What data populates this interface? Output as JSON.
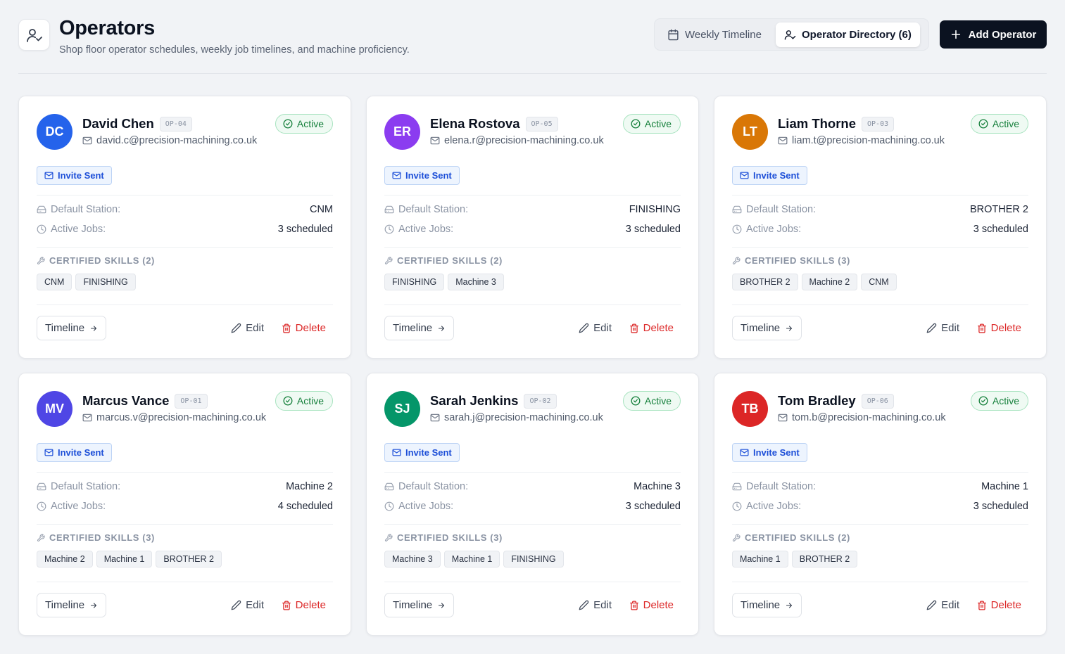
{
  "header": {
    "title": "Operators",
    "subtitle": "Shop floor operator schedules, weekly job timelines, and machine proficiency.",
    "title_icon": "user-check-icon"
  },
  "view_switch": {
    "weekly_label": "Weekly Timeline",
    "directory_label": "Operator Directory (6)",
    "active": "directory"
  },
  "add_button_label": "Add Operator",
  "labels": {
    "default_station": "Default Station:",
    "active_jobs": "Active Jobs:",
    "invite_sent": "Invite Sent",
    "timeline": "Timeline",
    "edit": "Edit",
    "delete": "Delete"
  },
  "colors": {
    "primary_dark": "#0b1220",
    "active_green": "#16803c",
    "invite_blue": "#1d4fd8",
    "delete_red": "#dc2626"
  },
  "operators": [
    {
      "initials": "DC",
      "avatar_color": "#2563eb",
      "name": "David Chen",
      "code": "OP-04",
      "email": "david.c@precision-machining.co.uk",
      "status": "Active",
      "station": "CNM",
      "jobs": "3 scheduled",
      "skills_title": "CERTIFIED SKILLS (2)",
      "skills": [
        "CNM",
        "FINISHING"
      ]
    },
    {
      "initials": "ER",
      "avatar_color": "#8b3cf0",
      "name": "Elena Rostova",
      "code": "OP-05",
      "email": "elena.r@precision-machining.co.uk",
      "status": "Active",
      "station": "FINISHING",
      "jobs": "3 scheduled",
      "skills_title": "CERTIFIED SKILLS (2)",
      "skills": [
        "FINISHING",
        "Machine 3"
      ]
    },
    {
      "initials": "LT",
      "avatar_color": "#d97706",
      "name": "Liam Thorne",
      "code": "OP-03",
      "email": "liam.t@precision-machining.co.uk",
      "status": "Active",
      "station": "BROTHER 2",
      "jobs": "3 scheduled",
      "skills_title": "CERTIFIED SKILLS (3)",
      "skills": [
        "BROTHER 2",
        "Machine 2",
        "CNM"
      ]
    },
    {
      "initials": "MV",
      "avatar_color": "#4f46e5",
      "name": "Marcus Vance",
      "code": "OP-01",
      "email": "marcus.v@precision-machining.co.uk",
      "status": "Active",
      "station": "Machine 2",
      "jobs": "4 scheduled",
      "skills_title": "CERTIFIED SKILLS (3)",
      "skills": [
        "Machine 2",
        "Machine 1",
        "BROTHER 2"
      ]
    },
    {
      "initials": "SJ",
      "avatar_color": "#059669",
      "name": "Sarah Jenkins",
      "code": "OP-02",
      "email": "sarah.j@precision-machining.co.uk",
      "status": "Active",
      "station": "Machine 3",
      "jobs": "3 scheduled",
      "skills_title": "CERTIFIED SKILLS (3)",
      "skills": [
        "Machine 3",
        "Machine 1",
        "FINISHING"
      ]
    },
    {
      "initials": "TB",
      "avatar_color": "#dc2626",
      "name": "Tom Bradley",
      "code": "OP-06",
      "email": "tom.b@precision-machining.co.uk",
      "status": "Active",
      "station": "Machine 1",
      "jobs": "3 scheduled",
      "skills_title": "CERTIFIED SKILLS (2)",
      "skills": [
        "Machine 1",
        "BROTHER 2"
      ]
    }
  ]
}
